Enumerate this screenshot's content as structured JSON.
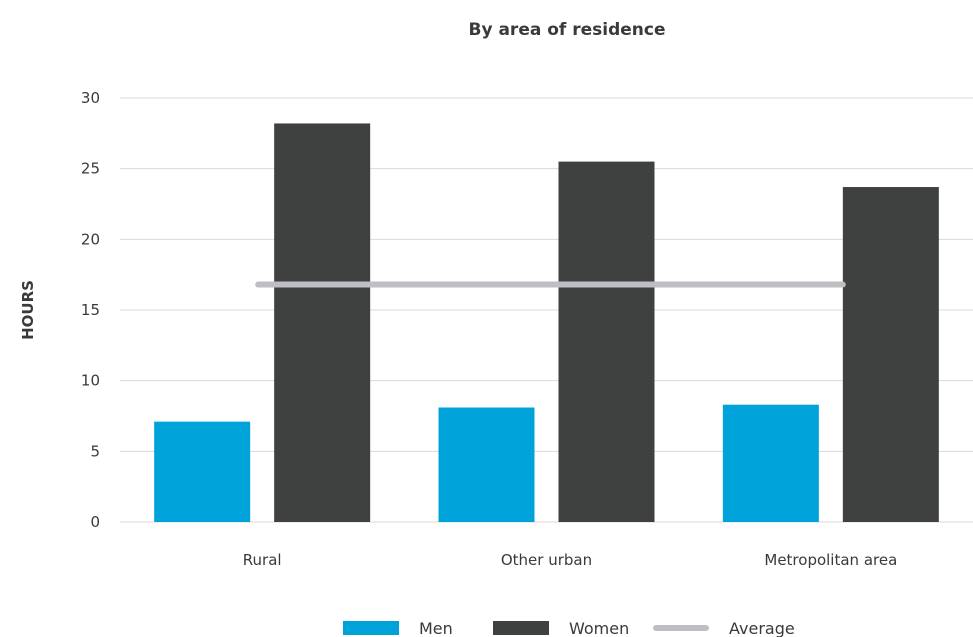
{
  "chart_data": {
    "type": "bar",
    "title": "By area of residence",
    "xlabel": "",
    "ylabel": "HOURS",
    "categories": [
      "Rural",
      "Other urban",
      "Metropolitan area"
    ],
    "series": [
      {
        "name": "Men",
        "values": [
          7.1,
          8.1,
          8.3
        ],
        "color": "#00a3d9"
      },
      {
        "name": "Women",
        "values": [
          28.2,
          25.5,
          23.7
        ],
        "color": "#3f4040"
      }
    ],
    "average": {
      "name": "Average",
      "value": 16.8,
      "color": "#bfbfc3"
    },
    "ylim": [
      0,
      30
    ],
    "yticks": [
      0,
      5,
      10,
      15,
      20,
      25,
      30
    ],
    "grid": true,
    "legend_position": "bottom"
  }
}
